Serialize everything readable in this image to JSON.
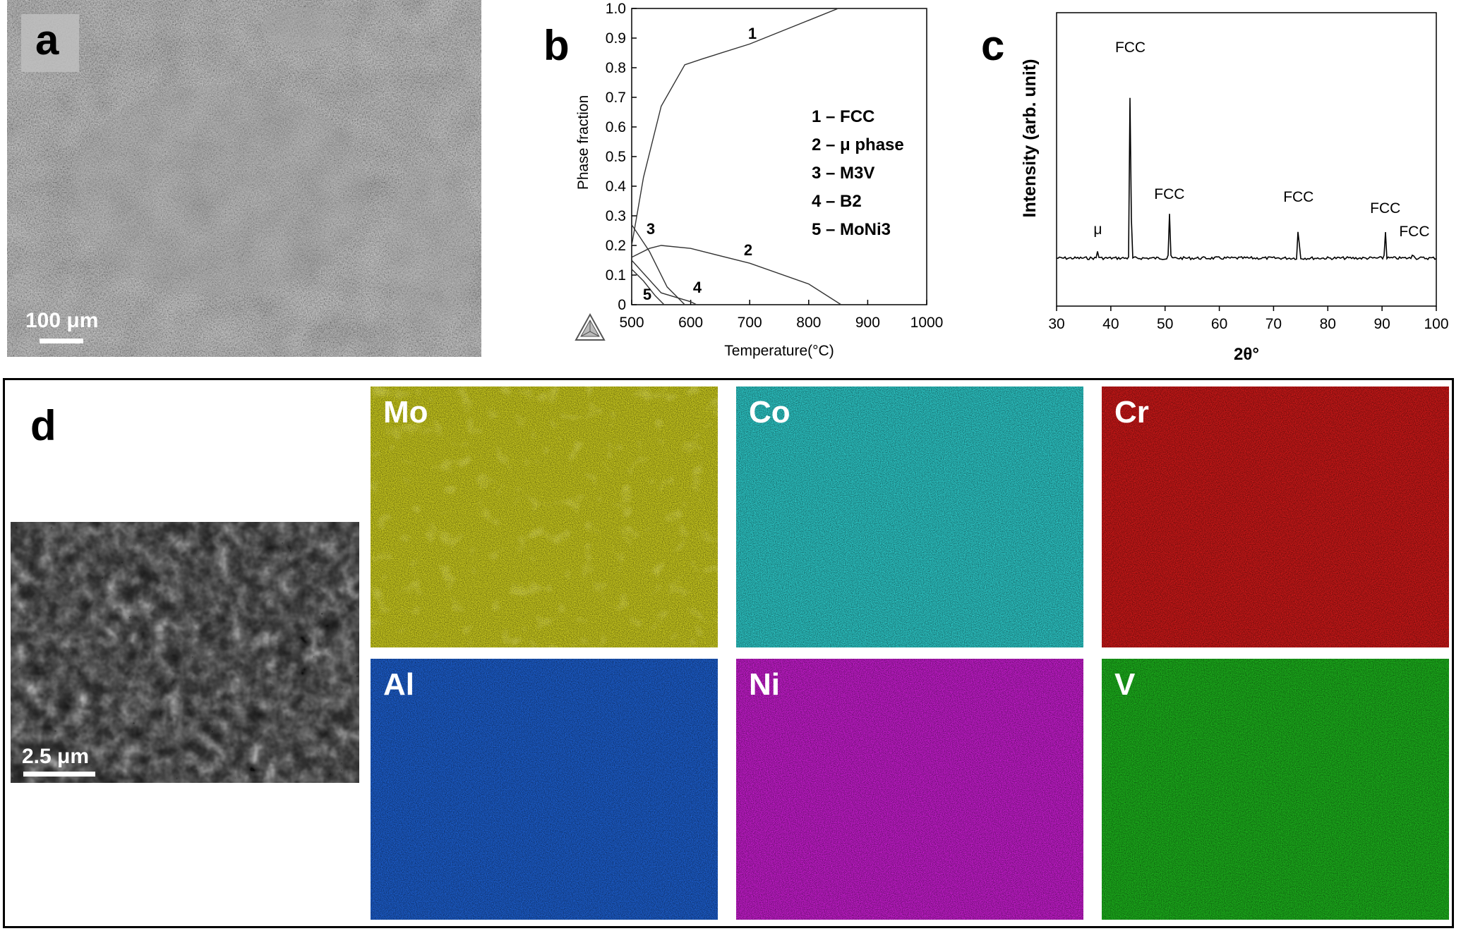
{
  "panel_a": {
    "letter": "a",
    "scale_bar": "100 μm"
  },
  "panel_b": {
    "letter": "b",
    "legend": [
      "1 – FCC",
      "2 – μ phase",
      "3 – M3V",
      "4 – B2",
      "5 – MoNi3"
    ],
    "curve_labels": [
      "1",
      "2",
      "3",
      "4",
      "5"
    ]
  },
  "panel_c": {
    "letter": "c",
    "peak_labels": [
      {
        "text": "μ",
        "x": 37.6
      },
      {
        "text": "FCC",
        "x": 43.6
      },
      {
        "text": "FCC",
        "x": 50.8
      },
      {
        "text": "FCC",
        "x": 74.6
      },
      {
        "text": "FCC",
        "x": 90.6
      },
      {
        "text": "FCC",
        "x": 95.7
      }
    ]
  },
  "panel_d": {
    "letter": "d",
    "scale_bar": "2.5 μm",
    "maps": [
      {
        "element": "Mo",
        "color": "#c8c81e"
      },
      {
        "element": "Co",
        "color": "#2cc4c4"
      },
      {
        "element": "Cr",
        "color": "#c81818"
      },
      {
        "element": "Al",
        "color": "#1c5cc8"
      },
      {
        "element": "Ni",
        "color": "#c01cc8"
      },
      {
        "element": "V",
        "color": "#1cae1c"
      }
    ]
  },
  "chart_data": [
    {
      "type": "line",
      "xlabel": "Temperature(°C)",
      "ylabel": "Phase fraction",
      "xlim": [
        500,
        1000
      ],
      "ylim": [
        0,
        1.0
      ],
      "xticks": [
        "500",
        "600",
        "700",
        "800",
        "900",
        "1000"
      ],
      "yticks": [
        "0",
        "0.1",
        "0.2",
        "0.3",
        "0.4",
        "0.5",
        "0.6",
        "0.7",
        "0.8",
        "0.9",
        "1.0"
      ],
      "series": [
        {
          "name": "1 – FCC",
          "x": [
            500,
            520,
            550,
            590,
            620,
            700,
            800,
            850,
            1000
          ],
          "y": [
            0.2,
            0.43,
            0.67,
            0.81,
            0.83,
            0.88,
            0.96,
            1.0,
            1.0
          ]
        },
        {
          "name": "2 – μ phase",
          "x": [
            500,
            530,
            550,
            600,
            700,
            800,
            855
          ],
          "y": [
            0.16,
            0.19,
            0.2,
            0.19,
            0.14,
            0.07,
            0.0
          ]
        },
        {
          "name": "3 – M3V",
          "x": [
            500,
            530,
            560,
            590
          ],
          "y": [
            0.27,
            0.18,
            0.06,
            0.0
          ]
        },
        {
          "name": "4 – B2",
          "x": [
            500,
            550,
            600,
            610
          ],
          "y": [
            0.15,
            0.04,
            0.01,
            0.0
          ]
        },
        {
          "name": "5 – MoNi3",
          "x": [
            500,
            520,
            540,
            555
          ],
          "y": [
            0.12,
            0.08,
            0.03,
            0.0
          ]
        }
      ]
    },
    {
      "type": "line",
      "xlabel": "2θ°",
      "ylabel": "Intensity (arb. unit)",
      "xlim": [
        30,
        100
      ],
      "xticks": [
        "30",
        "40",
        "50",
        "60",
        "70",
        "80",
        "90",
        "100"
      ],
      "series": [
        {
          "name": "",
          "peaks": [
            {
              "x": 37.6,
              "y": 0.04
            },
            {
              "x": 43.6,
              "y": 1.0
            },
            {
              "x": 50.8,
              "y": 0.23
            },
            {
              "x": 74.6,
              "y": 0.21
            },
            {
              "x": 90.6,
              "y": 0.14
            },
            {
              "x": 95.7,
              "y": 0.04
            }
          ]
        }
      ]
    }
  ]
}
